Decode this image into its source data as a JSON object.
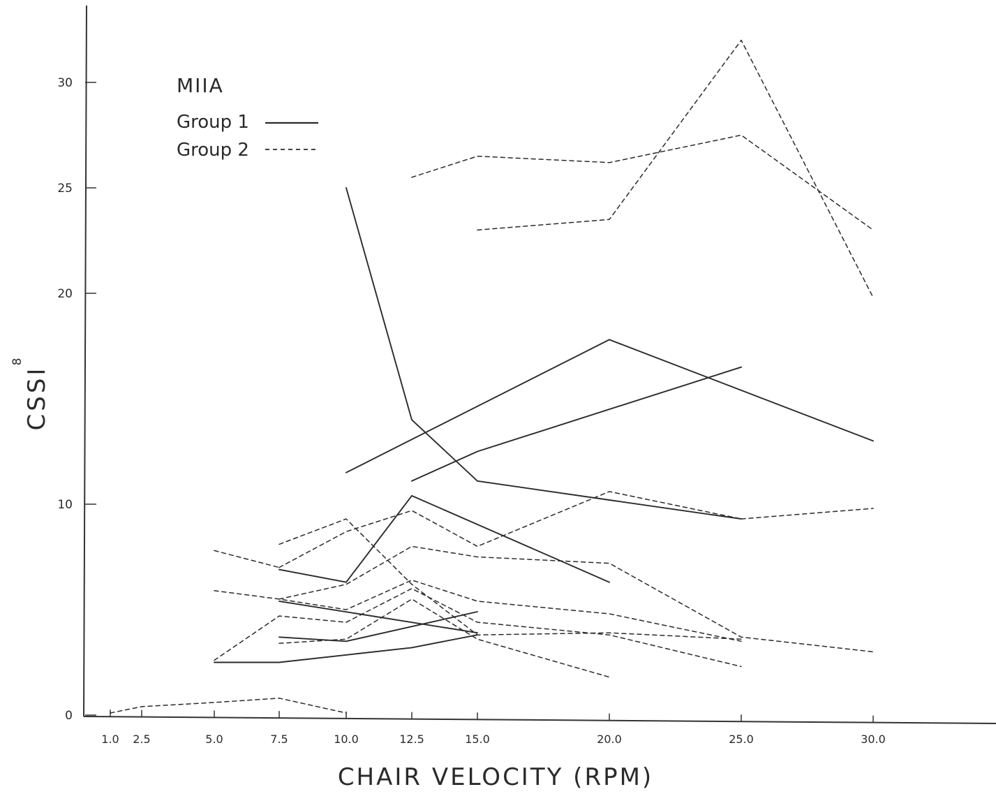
{
  "chart_data": {
    "type": "line",
    "title": "",
    "xlabel": "CHAIR VELOCITY (RPM)",
    "ylabel": "CSSI",
    "ylabel_superscript": "8",
    "xlim": [
      1.0,
      30.0
    ],
    "ylim": [
      0,
      30
    ],
    "x_ticks": [
      1.0,
      2.5,
      5.0,
      7.5,
      10.0,
      12.5,
      15.0,
      20.0,
      25.0,
      30.0
    ],
    "x_tick_labels": [
      "1.0",
      "2.5",
      "5.0",
      "7.5",
      "10.0",
      "12.5",
      "15.0",
      "20.0",
      "25.0",
      "30.0"
    ],
    "y_ticks": [
      0,
      10,
      20,
      25,
      30
    ],
    "y_tick_labels": [
      "0",
      "10",
      "20",
      "25",
      "30"
    ],
    "grid": false,
    "legend": {
      "placement": "top-left",
      "title": "MIIA",
      "entries": [
        {
          "label": "Group 1",
          "style": "solid"
        },
        {
          "label": "Group 2",
          "style": "dashed"
        }
      ]
    },
    "series": [
      {
        "group": 1,
        "points": [
          [
            10.0,
            25.0
          ],
          [
            12.5,
            14.0
          ],
          [
            15.0,
            11.1
          ],
          [
            20.0,
            10.2
          ],
          [
            25.0,
            9.3
          ]
        ]
      },
      {
        "group": 1,
        "points": [
          [
            10.0,
            11.5
          ],
          [
            20.0,
            17.8
          ],
          [
            30.0,
            13.0
          ]
        ]
      },
      {
        "group": 1,
        "points": [
          [
            12.5,
            11.1
          ],
          [
            15.0,
            12.5
          ],
          [
            25.0,
            16.5
          ]
        ]
      },
      {
        "group": 1,
        "points": [
          [
            7.5,
            6.9
          ],
          [
            10.0,
            6.3
          ],
          [
            12.5,
            10.4
          ],
          [
            20.0,
            6.3
          ]
        ]
      },
      {
        "group": 1,
        "points": [
          [
            7.5,
            5.4
          ],
          [
            15.0,
            3.9
          ]
        ]
      },
      {
        "group": 1,
        "points": [
          [
            7.5,
            3.7
          ],
          [
            10.0,
            3.5
          ],
          [
            15.0,
            4.9
          ]
        ]
      },
      {
        "group": 1,
        "points": [
          [
            5.0,
            2.5
          ],
          [
            7.5,
            2.5
          ],
          [
            12.5,
            3.2
          ],
          [
            15.0,
            3.8
          ]
        ]
      },
      {
        "group": 2,
        "points": [
          [
            12.5,
            25.5
          ],
          [
            15.0,
            26.5
          ],
          [
            20.0,
            26.2
          ],
          [
            25.0,
            27.5
          ],
          [
            30.0,
            23.0
          ]
        ]
      },
      {
        "group": 2,
        "points": [
          [
            15.0,
            23.0
          ],
          [
            20.0,
            23.5
          ],
          [
            25.0,
            32.0
          ],
          [
            30.0,
            19.8
          ]
        ]
      },
      {
        "group": 2,
        "points": [
          [
            25.0,
            9.3
          ],
          [
            30.0,
            9.8
          ]
        ]
      },
      {
        "group": 2,
        "points": [
          [
            7.5,
            8.1
          ],
          [
            10.0,
            9.3
          ],
          [
            12.5,
            6.2
          ],
          [
            15.0,
            3.8
          ],
          [
            20.0,
            3.9
          ],
          [
            25.0,
            3.6
          ]
        ]
      },
      {
        "group": 2,
        "points": [
          [
            7.5,
            7.0
          ],
          [
            10.0,
            8.7
          ],
          [
            12.5,
            9.7
          ],
          [
            15.0,
            8.0
          ],
          [
            20.0,
            10.6
          ],
          [
            25.0,
            9.3
          ]
        ]
      },
      {
        "group": 2,
        "points": [
          [
            5.0,
            7.8
          ],
          [
            7.5,
            7.0
          ]
        ]
      },
      {
        "group": 2,
        "points": [
          [
            7.5,
            5.5
          ],
          [
            10.0,
            6.2
          ],
          [
            12.5,
            8.0
          ],
          [
            15.0,
            7.5
          ],
          [
            20.0,
            7.2
          ],
          [
            25.0,
            3.7
          ],
          [
            30.0,
            3.0
          ]
        ]
      },
      {
        "group": 2,
        "points": [
          [
            5.0,
            5.9
          ],
          [
            7.5,
            5.5
          ],
          [
            10.0,
            5.0
          ],
          [
            12.5,
            6.4
          ],
          [
            15.0,
            5.4
          ],
          [
            20.0,
            4.8
          ],
          [
            25.0,
            3.5
          ]
        ]
      },
      {
        "group": 2,
        "points": [
          [
            5.0,
            2.6
          ],
          [
            7.5,
            4.7
          ],
          [
            10.0,
            4.4
          ],
          [
            12.5,
            6.0
          ],
          [
            15.0,
            4.4
          ],
          [
            20.0,
            3.8
          ],
          [
            25.0,
            2.3
          ]
        ]
      },
      {
        "group": 2,
        "points": [
          [
            7.5,
            3.4
          ],
          [
            10.0,
            3.6
          ],
          [
            12.5,
            5.5
          ],
          [
            15.0,
            3.6
          ],
          [
            20.0,
            1.8
          ]
        ]
      },
      {
        "group": 2,
        "points": [
          [
            1.0,
            0.1
          ],
          [
            2.5,
            0.4
          ],
          [
            5.0,
            0.6
          ],
          [
            7.5,
            0.8
          ],
          [
            10.0,
            0.1
          ]
        ]
      }
    ]
  }
}
